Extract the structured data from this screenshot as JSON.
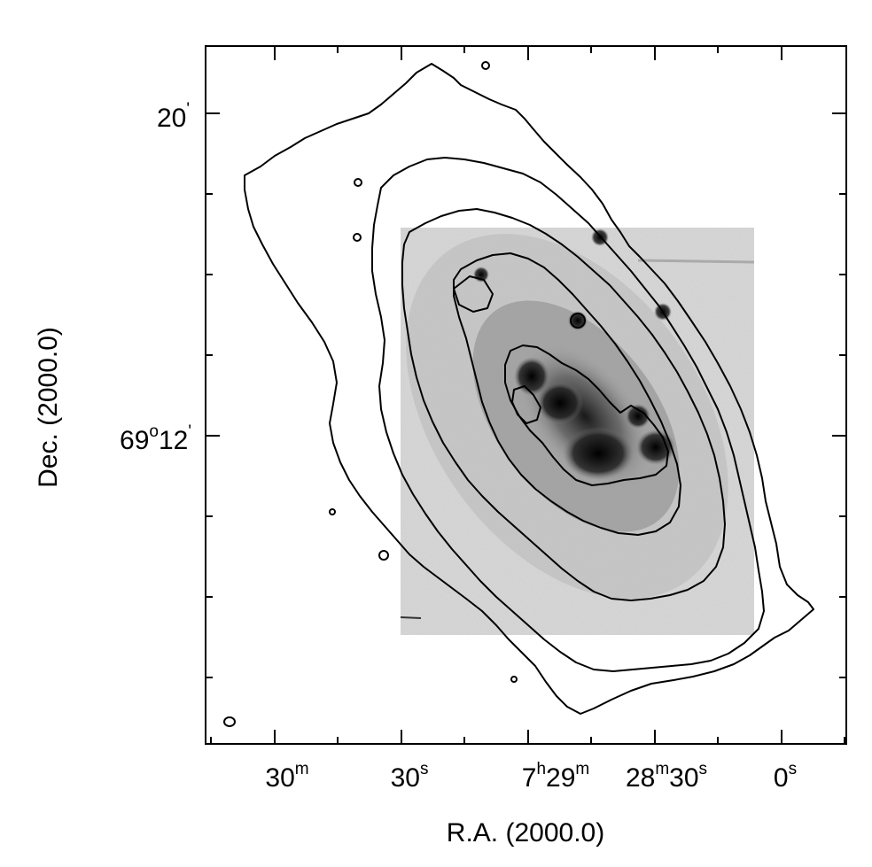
{
  "chart_data": {
    "type": "contour",
    "xlabel": "R.A. (2000.0)",
    "ylabel": "Dec. (2000.0)",
    "x_ticks": [
      {
        "main": "30",
        "sup": "m"
      },
      {
        "main": "30",
        "sup": "s"
      },
      {
        "main": "7",
        "sup": "h",
        "main2": "29",
        "sup2": "m"
      },
      {
        "main": "28",
        "sup": "m",
        "main2": "30",
        "sup2": "s"
      },
      {
        "main": "0",
        "sup": "s"
      }
    ],
    "y_ticks": [
      {
        "main": "20",
        "sup": "'"
      },
      {
        "main": "69",
        "sup": "o",
        "main2": "12",
        "sup2": "'"
      }
    ],
    "contour_levels": 5,
    "image": "grayscale optical image of galaxy with bright knots near center",
    "beam_marker": "small ellipse bottom-left",
    "colors": {
      "contour": "#000000",
      "background": "#ffffff",
      "image_bg": "#d9d9d9"
    }
  }
}
